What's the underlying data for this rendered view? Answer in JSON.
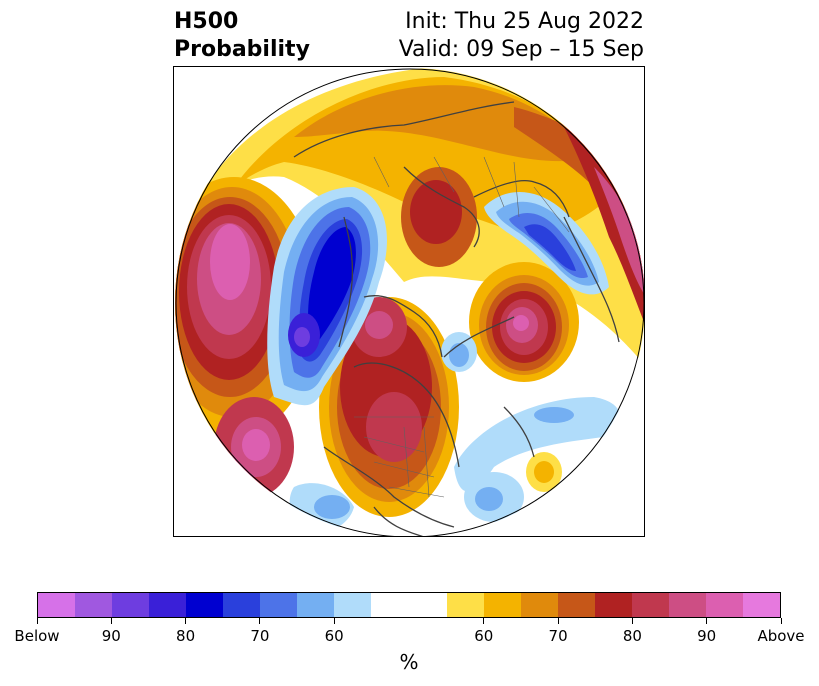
{
  "title": {
    "line1": "H500",
    "line2": "Probability"
  },
  "subtitle": {
    "init": "Init: Thu 25 Aug 2022",
    "valid": "Valid: 09 Sep – 15 Sep"
  },
  "colorbar": {
    "unit": "%",
    "below_colors": [
      "#d671e8",
      "#a058e0",
      "#6e3de0",
      "#3a20d8",
      "#0000d0",
      "#2a40dc",
      "#4d73e8",
      "#74aff2",
      "#b0dcfa"
    ],
    "neutral_color": "#ffffff",
    "above_colors": [
      "#fedf47",
      "#f4b300",
      "#e08a0c",
      "#c65718",
      "#b02222",
      "#c0384e",
      "#cd4e84",
      "#dc5fb0",
      "#e679de"
    ],
    "tick_labels": [
      "Below",
      "90",
      "80",
      "70",
      "60",
      "60",
      "70",
      "80",
      "90",
      "Above"
    ]
  },
  "map": {
    "projection": "north-polar-stereographic",
    "legend_semantics": "blue = below-normal 500mb height probability, warm = above-normal",
    "anomaly_centers": [
      {
        "category": "above",
        "level": "Above",
        "region": "north-pacific"
      },
      {
        "category": "below",
        "level": "80",
        "region": "gulf-of-alaska-bering"
      },
      {
        "category": "above",
        "level": "Above",
        "region": "western-canada"
      },
      {
        "category": "above",
        "level": "Above",
        "region": "central-canada-arctic"
      },
      {
        "category": "above",
        "level": "Above",
        "region": "north-atlantic-greenland"
      },
      {
        "category": "below",
        "level": "80",
        "region": "scandinavia-europe"
      },
      {
        "category": "above",
        "level": "Above",
        "region": "northern-siberia"
      },
      {
        "category": "below",
        "level": "60",
        "region": "eastern-atlantic"
      }
    ]
  }
}
